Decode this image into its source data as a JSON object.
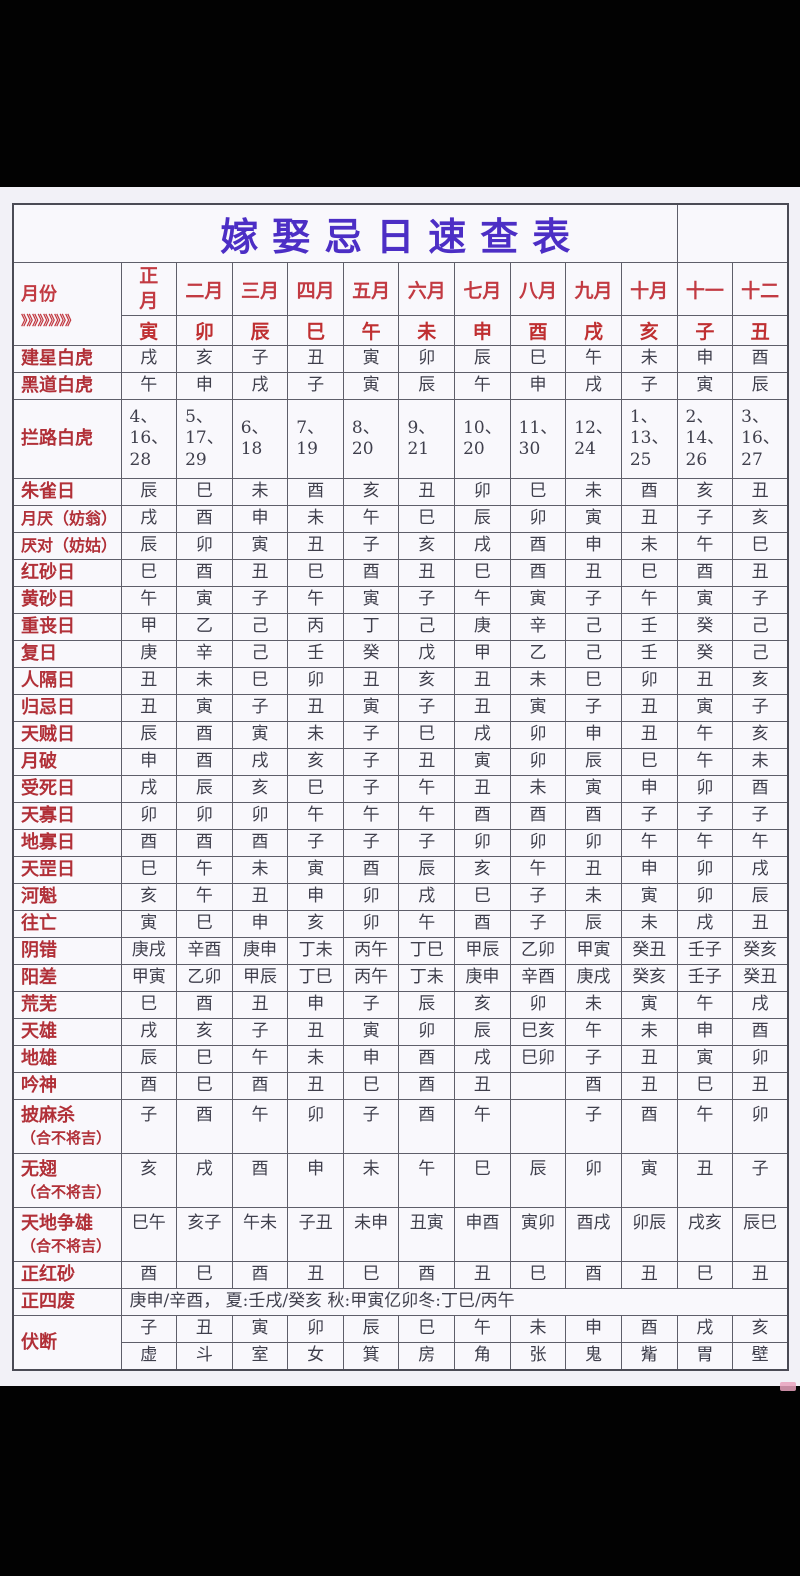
{
  "page": {
    "title": "嫁娶忌日速查表"
  },
  "colors": {
    "title_purple": "#4c2ec5",
    "header_red": "#c23a42",
    "label_red": "#b13038",
    "body_ink": "#3f3f4c",
    "table_bg": "#f9f8fc",
    "page_bg": "#f2f1f7",
    "outer_bg": "#000000"
  },
  "table": {
    "corner_label": "月份",
    "corner_arrows": "》》》》》》》》》",
    "months": [
      "正月",
      "二月",
      "三月",
      "四月",
      "五月",
      "六月",
      "七月",
      "八月",
      "九月",
      "十月",
      "十一",
      "十二"
    ],
    "branches": [
      "寅",
      "卯",
      "辰",
      "巳",
      "午",
      "未",
      "申",
      "酉",
      "戌",
      "亥",
      "子",
      "丑"
    ],
    "rows": [
      {
        "label": "建星白虎",
        "values": [
          "戌",
          "亥",
          "子",
          "丑",
          "寅",
          "卯",
          "辰",
          "巳",
          "午",
          "未",
          "申",
          "酉"
        ]
      },
      {
        "label": "黑道白虎",
        "values": [
          "午",
          "申",
          "戌",
          "子",
          "寅",
          "辰",
          "午",
          "申",
          "戌",
          "子",
          "寅",
          "辰"
        ]
      },
      {
        "label": "拦路白虎",
        "tall": true,
        "values": [
          "4、16、28",
          "5、17、29",
          "6、18",
          "7、19",
          "8、20",
          "9、21",
          "10、20",
          "11、30",
          "12、24",
          "1、13、25",
          "2、14、26",
          "3、16、27"
        ]
      },
      {
        "label": "朱雀日",
        "values": [
          "辰",
          "巳",
          "未",
          "酉",
          "亥",
          "丑",
          "卯",
          "巳",
          "未",
          "酉",
          "亥",
          "丑"
        ]
      },
      {
        "label": "月厌（妨翁）",
        "values": [
          "戌",
          "酉",
          "申",
          "未",
          "午",
          "巳",
          "辰",
          "卯",
          "寅",
          "丑",
          "子",
          "亥"
        ]
      },
      {
        "label": "厌对（妨姑）",
        "values": [
          "辰",
          "卯",
          "寅",
          "丑",
          "子",
          "亥",
          "戌",
          "酉",
          "申",
          "未",
          "午",
          "巳"
        ]
      },
      {
        "label": "红砂日",
        "values": [
          "巳",
          "酉",
          "丑",
          "巳",
          "酉",
          "丑",
          "巳",
          "酉",
          "丑",
          "巳",
          "酉",
          "丑"
        ]
      },
      {
        "label": "黄砂日",
        "values": [
          "午",
          "寅",
          "子",
          "午",
          "寅",
          "子",
          "午",
          "寅",
          "子",
          "午",
          "寅",
          "子"
        ]
      },
      {
        "label": "重丧日",
        "values": [
          "甲",
          "乙",
          "己",
          "丙",
          "丁",
          "己",
          "庚",
          "辛",
          "己",
          "壬",
          "癸",
          "己"
        ]
      },
      {
        "label": "复日",
        "values": [
          "庚",
          "辛",
          "己",
          "壬",
          "癸",
          "戊",
          "甲",
          "乙",
          "己",
          "壬",
          "癸",
          "己"
        ]
      },
      {
        "label": "人隔日",
        "values": [
          "丑",
          "未",
          "巳",
          "卯",
          "丑",
          "亥",
          "丑",
          "未",
          "巳",
          "卯",
          "丑",
          "亥"
        ]
      },
      {
        "label": "归忌日",
        "values": [
          "丑",
          "寅",
          "子",
          "丑",
          "寅",
          "子",
          "丑",
          "寅",
          "子",
          "丑",
          "寅",
          "子"
        ]
      },
      {
        "label": "天贼日",
        "values": [
          "辰",
          "酉",
          "寅",
          "未",
          "子",
          "巳",
          "戌",
          "卯",
          "申",
          "丑",
          "午",
          "亥"
        ]
      },
      {
        "label": "月破",
        "values": [
          "申",
          "酉",
          "戌",
          "亥",
          "子",
          "丑",
          "寅",
          "卯",
          "辰",
          "巳",
          "午",
          "未"
        ]
      },
      {
        "label": "受死日",
        "values": [
          "戌",
          "辰",
          "亥",
          "巳",
          "子",
          "午",
          "丑",
          "未",
          "寅",
          "申",
          "卯",
          "酉"
        ]
      },
      {
        "label": "天寡日",
        "values": [
          "卯",
          "卯",
          "卯",
          "午",
          "午",
          "午",
          "酉",
          "酉",
          "酉",
          "子",
          "子",
          "子"
        ]
      },
      {
        "label": "地寡日",
        "values": [
          "酉",
          "酉",
          "酉",
          "子",
          "子",
          "子",
          "卯",
          "卯",
          "卯",
          "午",
          "午",
          "午"
        ]
      },
      {
        "label": "天罡日",
        "values": [
          "巳",
          "午",
          "未",
          "寅",
          "酉",
          "辰",
          "亥",
          "午",
          "丑",
          "申",
          "卯",
          "戌"
        ]
      },
      {
        "label": "河魁",
        "values": [
          "亥",
          "午",
          "丑",
          "申",
          "卯",
          "戌",
          "巳",
          "子",
          "未",
          "寅",
          "卯",
          "辰"
        ]
      },
      {
        "label": "往亡",
        "values": [
          "寅",
          "巳",
          "申",
          "亥",
          "卯",
          "午",
          "酉",
          "子",
          "辰",
          "未",
          "戌",
          "丑"
        ]
      },
      {
        "label": "阴错",
        "values": [
          "庚戌",
          "辛酉",
          "庚申",
          "丁未",
          "丙午",
          "丁巳",
          "甲辰",
          "乙卯",
          "甲寅",
          "癸丑",
          "壬子",
          "癸亥"
        ]
      },
      {
        "label": "阳差",
        "values": [
          "甲寅",
          "乙卯",
          "甲辰",
          "丁巳",
          "丙午",
          "丁未",
          "庚申",
          "辛酉",
          "庚戌",
          "癸亥",
          "壬子",
          "癸丑"
        ]
      },
      {
        "label": "荒芜",
        "values": [
          "巳",
          "酉",
          "丑",
          "申",
          "子",
          "辰",
          "亥",
          "卯",
          "未",
          "寅",
          "午",
          "戌"
        ]
      },
      {
        "label": "天雄",
        "values": [
          "戌",
          "亥",
          "子",
          "丑",
          "寅",
          "卯",
          "辰",
          "巳亥",
          "午",
          "未",
          "申",
          "酉"
        ]
      },
      {
        "label": "地雄",
        "values": [
          "辰",
          "巳",
          "午",
          "未",
          "申",
          "酉",
          "戌",
          "巳卯",
          "子",
          "丑",
          "寅",
          "卯"
        ]
      },
      {
        "label": "吟神",
        "values": [
          "酉",
          "巳",
          "酉",
          "丑",
          "巳",
          "酉",
          "丑",
          "",
          "酉",
          "丑",
          "巳",
          "丑"
        ]
      },
      {
        "label": "披麻杀",
        "sublabel": "（合不将吉）",
        "values": [
          "子",
          "酉",
          "午",
          "卯",
          "子",
          "酉",
          "午",
          "",
          "子",
          "酉",
          "午",
          "卯"
        ]
      },
      {
        "label": "无翅",
        "sublabel": "（合不将吉）",
        "values": [
          "亥",
          "戌",
          "酉",
          "申",
          "未",
          "午",
          "巳",
          "辰",
          "卯",
          "寅",
          "丑",
          "子"
        ]
      },
      {
        "label": "天地争雄",
        "sublabel": "（合不将吉）",
        "values": [
          "巳午",
          "亥子",
          "午未",
          "子丑",
          "未申",
          "丑寅",
          "申酉",
          "寅卯",
          "酉戌",
          "卯辰",
          "戌亥",
          "辰巳"
        ]
      },
      {
        "label": "正红砂",
        "values": [
          "酉",
          "巳",
          "酉",
          "丑",
          "巳",
          "酉",
          "丑",
          "巳",
          "酉",
          "丑",
          "巳",
          "丑"
        ]
      },
      {
        "label": "正四废",
        "fullspan": "庚申/辛酉， 夏:壬戌/癸亥 秋:甲寅亿卯冬:丁巳/丙午"
      },
      {
        "label": "伏断",
        "values": [
          "子",
          "丑",
          "寅",
          "卯",
          "辰",
          "巳",
          "午",
          "未",
          "申",
          "酉",
          "戌",
          "亥"
        ],
        "values2": [
          "虚",
          "斗",
          "室",
          "女",
          "箕",
          "房",
          "角",
          "张",
          "鬼",
          "觜",
          "胃",
          "壁"
        ]
      }
    ]
  }
}
